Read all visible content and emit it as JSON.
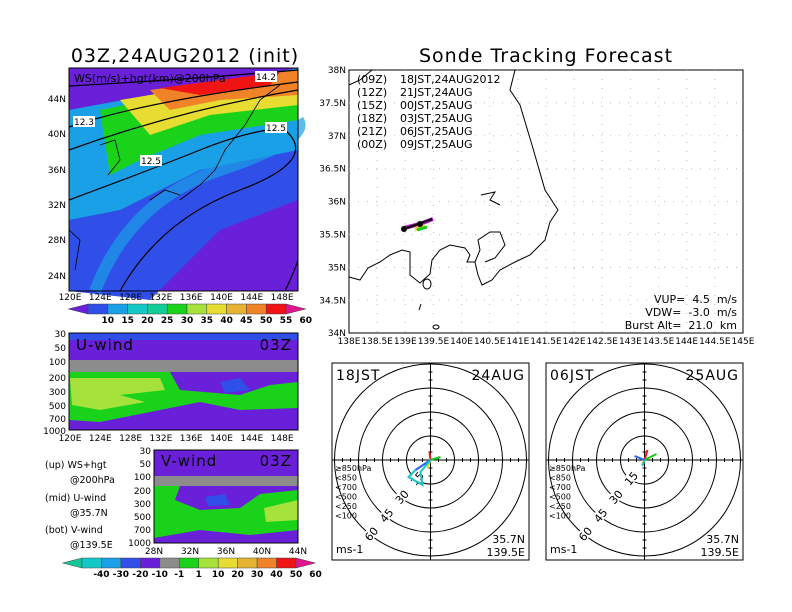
{
  "left_title": "03Z,24AUG2012 (init)",
  "right_title": "Sonde Tracking Forecast",
  "top_map": {
    "label": "WS(m/s)+hgt(km)@200hPa",
    "contour_labels": [
      "14.2",
      "12.3",
      "12.5",
      "12.5"
    ],
    "y_ticks": [
      "44N",
      "40N",
      "36N",
      "32N",
      "28N",
      "24N"
    ],
    "x_ticks": [
      "120E",
      "124E",
      "128E",
      "132E",
      "136E",
      "140E",
      "144E",
      "148E"
    ],
    "colorbar": {
      "labels": [
        "10",
        "15",
        "20",
        "25",
        "30",
        "35",
        "40",
        "45",
        "50",
        "55",
        "60"
      ],
      "colors": [
        "#6a1fd8",
        "#2f4fe8",
        "#1aa0e6",
        "#14c8c8",
        "#14cc96",
        "#1ad21a",
        "#a5e23c",
        "#e6dc32",
        "#e6b432",
        "#f08228",
        "#f01414",
        "#e0148c"
      ]
    }
  },
  "u_wind": {
    "label": "U-wind",
    "time": "03Z",
    "y_ticks": [
      "30",
      "50",
      "100",
      "200",
      "300",
      "500",
      "700",
      "1000"
    ],
    "x_ticks": [
      "120E",
      "124E",
      "128E",
      "132E",
      "136E",
      "140E",
      "144E",
      "148E"
    ]
  },
  "v_wind": {
    "label": "V-wind",
    "time": "03Z",
    "y_ticks": [
      "30",
      "50",
      "100",
      "200",
      "300",
      "500",
      "700",
      "1000"
    ],
    "x_ticks": [
      "28N",
      "32N",
      "36N",
      "40N",
      "44N"
    ]
  },
  "panel_notes": [
    "(up) WS+hgt",
    "@200hPa",
    "(mid) U-wind",
    "@35.7N",
    "(bot) V-wind",
    "@139.5E"
  ],
  "bottom_colorbar": {
    "labels": [
      "-40",
      "-30",
      "-20",
      "-10",
      "-1",
      "1",
      "10",
      "20",
      "30",
      "40",
      "50",
      "60"
    ],
    "colors": [
      "#14c896",
      "#14c8c8",
      "#1aa0e6",
      "#2f4fe8",
      "#6a1fd8",
      "#8c8c8c",
      "#1ad21a",
      "#a5e23c",
      "#e6dc32",
      "#e6b432",
      "#f08228",
      "#f01414",
      "#e0148c"
    ]
  },
  "track_map": {
    "legend": [
      {
        "utc": "(09Z)",
        "jst": "18JST,24AUG2012",
        "color": "#000000"
      },
      {
        "utc": "(12Z)",
        "jst": "21JST,24AUG",
        "color": "#b414c8"
      },
      {
        "utc": "(15Z)",
        "jst": "00JST,25AUG",
        "color": "#2f5ff0"
      },
      {
        "utc": "(18Z)",
        "jst": "03JST,25AUG",
        "color": "#14c814"
      },
      {
        "utc": "(21Z)",
        "jst": "06JST,25AUG",
        "color": "#e6d232"
      },
      {
        "utc": "(00Z)",
        "jst": "09JST,25AUG",
        "color": "#f08c3c"
      }
    ],
    "y_ticks": [
      "38N",
      "37.5N",
      "37N",
      "36.5N",
      "36N",
      "35.5N",
      "35N",
      "34.5N",
      "34N"
    ],
    "x_ticks": [
      "138E",
      "138.5E",
      "139E",
      "139.5E",
      "140E",
      "140.5E",
      "141E",
      "141.5E",
      "142E",
      "142.5E",
      "143E",
      "143.5E",
      "144E",
      "144.5E",
      "145E"
    ],
    "params": [
      "VUP=  4.5  m/s",
      "VDW=  -3.0  m/s",
      "Burst Alt=  21.0  km"
    ]
  },
  "hodographs": [
    {
      "time": "18JST",
      "date": "24AUG",
      "lat": "35.7N",
      "lon": "139.5E",
      "units": "ms-1"
    },
    {
      "time": "06JST",
      "date": "25AUG",
      "lat": "35.7N",
      "lon": "139.5E",
      "units": "ms-1"
    }
  ],
  "hodo_rings": [
    "15",
    "30",
    "45",
    "60"
  ],
  "hodo_legend": [
    {
      "label": "≥850hPa",
      "color": "#f01414"
    },
    {
      "label": "<850",
      "color": "#f08c3c"
    },
    {
      "label": "<700",
      "color": "#e6d232"
    },
    {
      "label": "<500",
      "color": "#14c814"
    },
    {
      "label": "<250",
      "color": "#14c8c8"
    },
    {
      "label": "<100",
      "color": "#2f5ff0"
    }
  ]
}
